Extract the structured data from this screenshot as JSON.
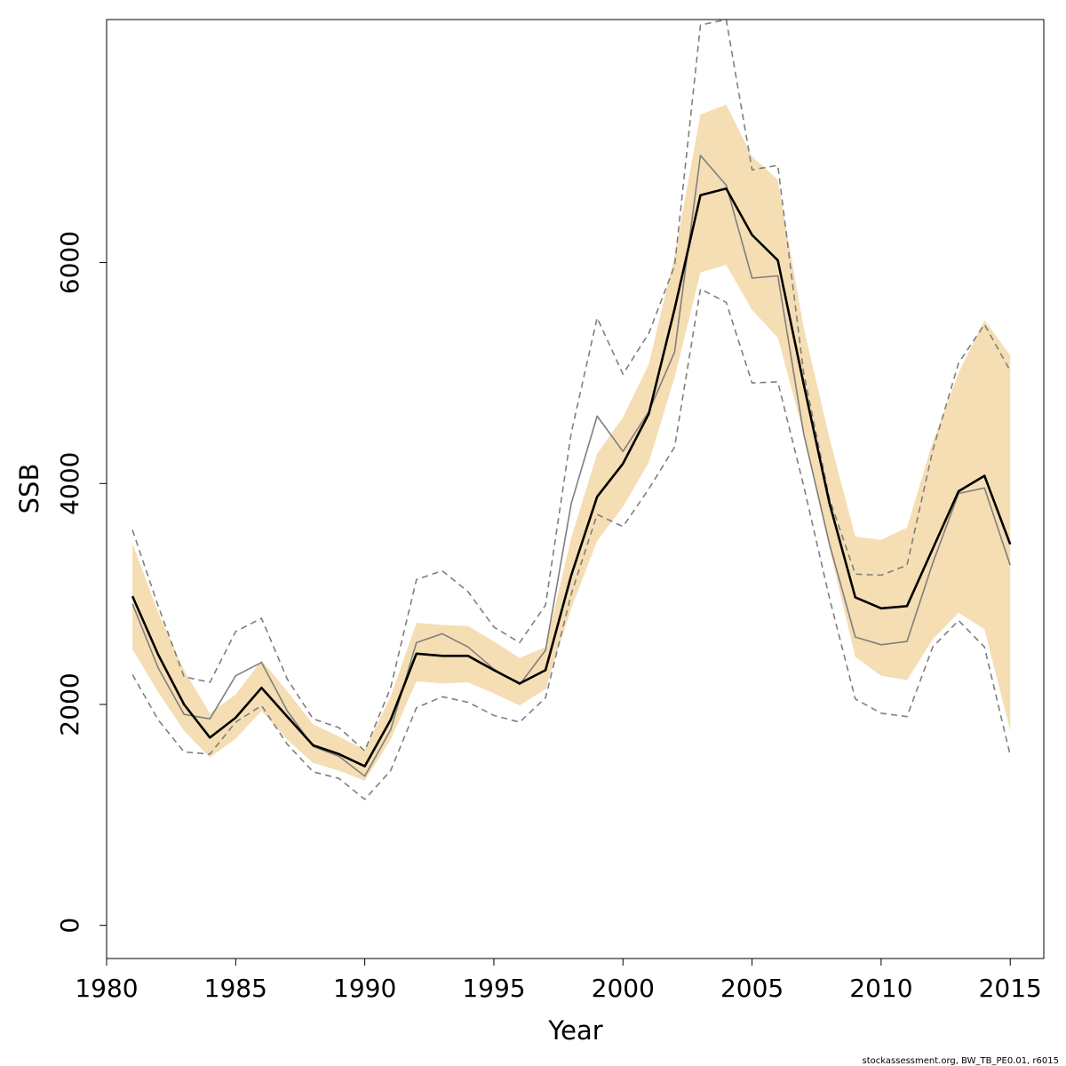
{
  "chart_data": {
    "type": "line",
    "title": "",
    "xlabel": "Year",
    "ylabel": "SSB",
    "xlim": [
      1980,
      2016.3
    ],
    "ylim": [
      -300,
      8200
    ],
    "x_ticks": [
      "1980",
      "1985",
      "1990",
      "1995",
      "2000",
      "2005",
      "2010",
      "2015"
    ],
    "y_ticks": [
      "0",
      "2000",
      "4000",
      "6000"
    ],
    "grid": false,
    "legend": "none",
    "colors": {
      "band": "#f5deb3",
      "main": "#000000",
      "alt": "#7f7f7f",
      "dashed": "#7f7f7f"
    },
    "x": [
      1981,
      1982,
      1983,
      1984,
      1985,
      1986,
      1987,
      1988,
      1989,
      1990,
      1991,
      1992,
      1993,
      1994,
      1995,
      1996,
      1997,
      1998,
      1999,
      2000,
      2001,
      2002,
      2003,
      2004,
      2005,
      2006,
      2007,
      2008,
      2009,
      2010,
      2011,
      2012,
      2013,
      2014,
      2015
    ],
    "series": [
      {
        "role": "estimate",
        "style": "solid-thick",
        "values": [
          2980,
          2450,
          2000,
          1700,
          1880,
          2150,
          1890,
          1630,
          1550,
          1440,
          1860,
          2460,
          2440,
          2440,
          2310,
          2190,
          2310,
          3170,
          3880,
          4180,
          4630,
          5580,
          6610,
          6670,
          6250,
          6020,
          4900,
          3820,
          2970,
          2870,
          2890,
          3410,
          3930,
          4070,
          3450
        ]
      },
      {
        "role": "alternative",
        "style": "solid-thin",
        "values": [
          2910,
          2330,
          1910,
          1870,
          2260,
          2380,
          1940,
          1620,
          1530,
          1350,
          1770,
          2560,
          2640,
          2520,
          2320,
          2180,
          2490,
          3820,
          4610,
          4290,
          4650,
          5190,
          6970,
          6700,
          5860,
          5880,
          4450,
          3450,
          2610,
          2540,
          2570,
          3280,
          3910,
          3960,
          3260
        ]
      },
      {
        "role": "lower-dashed",
        "style": "dashed",
        "values": [
          2270,
          1860,
          1570,
          1550,
          1840,
          1990,
          1640,
          1390,
          1330,
          1140,
          1400,
          1970,
          2070,
          2020,
          1900,
          1840,
          2060,
          3000,
          3720,
          3610,
          3950,
          4330,
          5760,
          5640,
          4910,
          4920,
          3980,
          2960,
          2050,
          1920,
          1890,
          2520,
          2760,
          2520,
          1540
        ]
      },
      {
        "role": "upper-dashed",
        "style": "dashed",
        "values": [
          3580,
          2890,
          2250,
          2200,
          2660,
          2780,
          2230,
          1870,
          1790,
          1580,
          2150,
          3130,
          3210,
          3020,
          2700,
          2560,
          2900,
          4460,
          5500,
          4990,
          5360,
          5970,
          8150,
          8200,
          6840,
          6880,
          5000,
          3860,
          3180,
          3170,
          3260,
          4300,
          5090,
          5440,
          5020
        ]
      }
    ],
    "band": {
      "role": "confidence-interval",
      "lower": [
        2500,
        2110,
        1760,
        1520,
        1690,
        1940,
        1680,
        1470,
        1400,
        1310,
        1680,
        2210,
        2190,
        2200,
        2100,
        1990,
        2140,
        2870,
        3480,
        3790,
        4190,
        4960,
        5910,
        5980,
        5570,
        5320,
        4450,
        3410,
        2430,
        2260,
        2220,
        2590,
        2830,
        2680,
        1760
      ],
      "upper": [
        3460,
        2830,
        2310,
        1920,
        2090,
        2400,
        2120,
        1820,
        1710,
        1590,
        2070,
        2740,
        2720,
        2710,
        2570,
        2420,
        2520,
        3510,
        4270,
        4600,
        5080,
        6060,
        7340,
        7430,
        6960,
        6750,
        5410,
        4410,
        3520,
        3490,
        3600,
        4380,
        5000,
        5480,
        5160
      ]
    }
  },
  "footer": "stockassessment.org, BW_TB_PE0.01, r6015"
}
